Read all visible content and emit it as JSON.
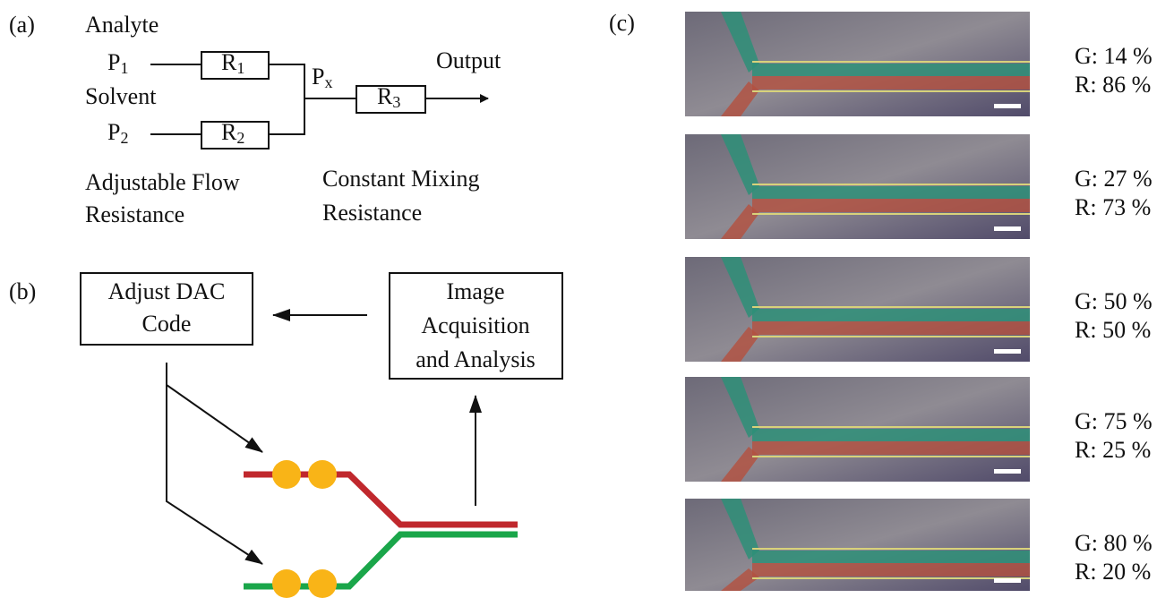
{
  "panel_a": {
    "label": "(a)",
    "analyte": "Analyte",
    "solvent": "Solvent",
    "p1": {
      "main": "P",
      "sub": "1"
    },
    "p2": {
      "main": "P",
      "sub": "2"
    },
    "px": {
      "main": "P",
      "sub": "x"
    },
    "r1": {
      "main": "R",
      "sub": "1"
    },
    "r2": {
      "main": "R",
      "sub": "2"
    },
    "r3": {
      "main": "R",
      "sub": "3"
    },
    "output": "Output",
    "adjustable": [
      "Adjustable Flow",
      "Resistance"
    ],
    "constant": [
      "Constant Mixing",
      "Resistance"
    ]
  },
  "panel_b": {
    "label": "(b)",
    "dac_box": [
      "Adjust DAC",
      "Code"
    ],
    "image_box": [
      "Image",
      "Acquisition",
      "and Analysis"
    ]
  },
  "panel_c": {
    "label": "(c)",
    "rows": [
      {
        "green": "G: 14 %",
        "red": "R: 86 %"
      },
      {
        "green": "G: 27 %",
        "red": "R: 73 %"
      },
      {
        "green": "G: 50 %",
        "red": "R: 50 %"
      },
      {
        "green": "G: 75 %",
        "red": "R: 25 %"
      },
      {
        "green": "G: 80 %",
        "red": "R: 20 %"
      }
    ]
  }
}
